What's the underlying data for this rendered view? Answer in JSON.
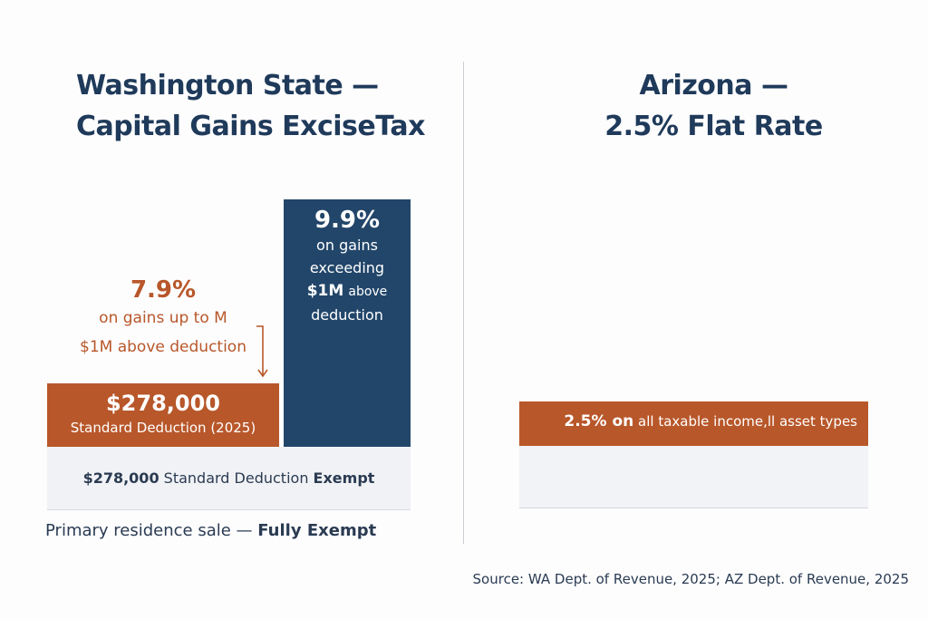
{
  "washington": {
    "title_line1": "Washington State —",
    "title_line2": "Capital Gains ExciseTax",
    "lower_rate": "7.9%",
    "lower_rate_line1": "on gains up to M",
    "lower_rate_line2": "$1M above deduction",
    "deduction_amount": "$278,000",
    "deduction_label": "Standard Deduction (2025)",
    "upper_rate": "9.9%",
    "upper_line1": "on gains",
    "upper_line2": "exceeding",
    "upper_line3_bold": "$1M",
    "upper_line3": "above",
    "upper_line4": "deduction",
    "exempt_amount": "$278,000",
    "exempt_label": "Standard Deduction",
    "exempt_word": "Exempt",
    "residence_label": "Primary residence sale —",
    "residence_status": "Fully Exempt"
  },
  "arizona": {
    "title_line1": "Arizona —",
    "title_line2": "2.5% Flat Rate",
    "rate_bold": "2.5% on",
    "rate_text": "all taxable income,ll asset types"
  },
  "source": "Source: WA Dept. of Revenue, 2025; AZ Dept. of Revenue, 2025",
  "colors": {
    "orange": "#b8572a",
    "navy": "#22466a",
    "text": "#1f3a5a"
  }
}
